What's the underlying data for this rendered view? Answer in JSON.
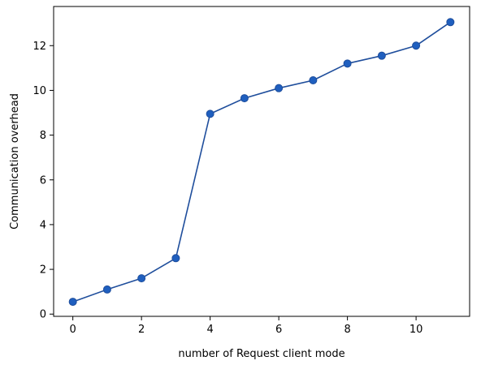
{
  "chart_data": {
    "type": "line",
    "title": "",
    "xlabel": "number of Request client mode",
    "ylabel": "Communication overhead",
    "x": [
      0,
      1,
      2,
      3,
      4,
      5,
      6,
      7,
      8,
      9,
      10,
      11
    ],
    "series": [
      {
        "values": [
          0.55,
          1.1,
          1.6,
          2.5,
          8.95,
          9.65,
          10.1,
          10.45,
          11.2,
          11.55,
          12.0,
          13.05
        ],
        "color": "#1f4e9c",
        "marker_color": "#1f5fbf"
      }
    ],
    "xlim": [
      -0.56,
      11.56
    ],
    "ylim": [
      -0.1,
      13.75
    ],
    "xticks": [
      0,
      2,
      4,
      6,
      8,
      10
    ],
    "yticks": [
      0,
      2,
      4,
      6,
      8,
      10,
      12
    ],
    "grid": false,
    "legend": "none"
  }
}
